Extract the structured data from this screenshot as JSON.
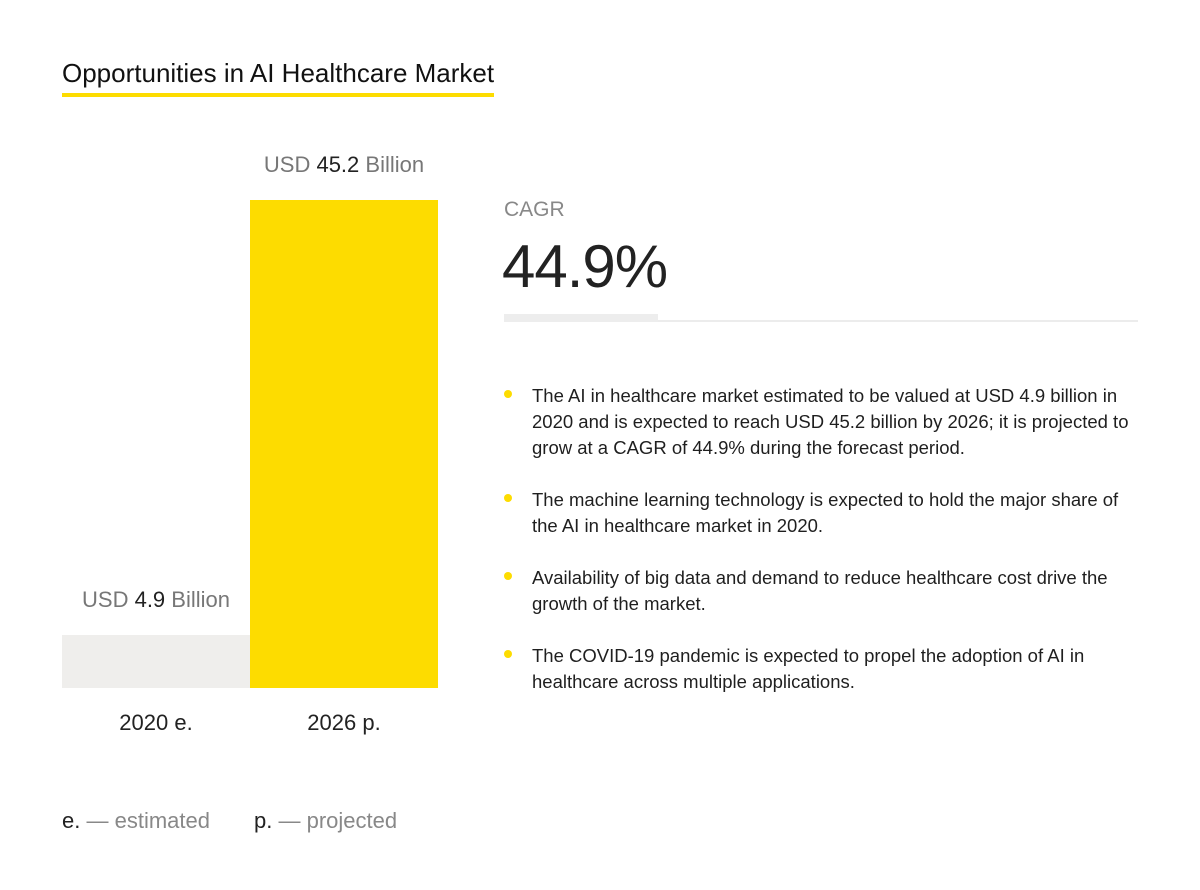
{
  "title": "Opportunities in AI Healthcare Market",
  "chart_data": {
    "type": "bar",
    "categories": [
      "2020 e.",
      "2026 p."
    ],
    "values": [
      4.9,
      45.2
    ],
    "unit": "USD Billion",
    "value_labels": [
      {
        "prefix": "USD",
        "number": "4.9",
        "suffix": "Billion"
      },
      {
        "prefix": "USD",
        "number": "45.2",
        "suffix": "Billion"
      }
    ],
    "colors": [
      "#efeeec",
      "#fddc00"
    ],
    "ylim": [
      0,
      45.2
    ],
    "grid": false
  },
  "cagr": {
    "label": "CAGR",
    "value": "44.9%"
  },
  "bullets": [
    "The AI in healthcare market estimated to be valued at USD 4.9 billion in 2020 and is expected to reach USD 45.2 billion by 2026; it is projected to grow at a CAGR of 44.9% during the forecast period.",
    "The machine learning technology is expected to hold the major share of the AI in healthcare market in 2020.",
    "Availability of big data and demand to reduce healthcare cost drive the growth of the market.",
    "The COVID-19 pandemic is expected to propel the adoption of AI in healthcare across multiple applications."
  ],
  "legend": [
    {
      "key": "e.",
      "desc": "— estimated"
    },
    {
      "key": "p.",
      "desc": "— projected"
    }
  ],
  "accent_color": "#fddc00"
}
